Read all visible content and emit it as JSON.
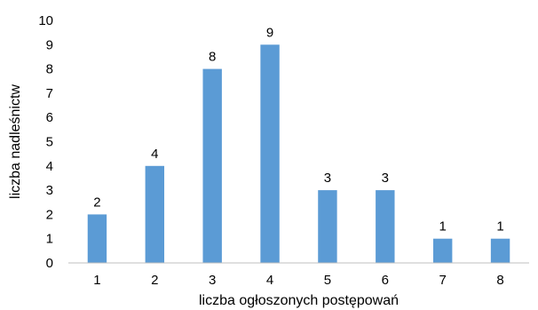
{
  "chart_data": {
    "type": "bar",
    "categories": [
      "1",
      "2",
      "3",
      "4",
      "5",
      "6",
      "7",
      "8"
    ],
    "values": [
      2,
      4,
      8,
      9,
      3,
      3,
      1,
      1
    ],
    "title": "",
    "xlabel": "liczba ogłoszonych postępowań",
    "ylabel": "liczba nadleśnictw",
    "ylim": [
      0,
      10
    ],
    "yticks": [
      "0",
      "1",
      "2",
      "3",
      "4",
      "5",
      "6",
      "7",
      "8",
      "9",
      "10"
    ],
    "grid": false,
    "legend": "none",
    "bar_color": "#5b9bd5",
    "data_labels": true
  }
}
